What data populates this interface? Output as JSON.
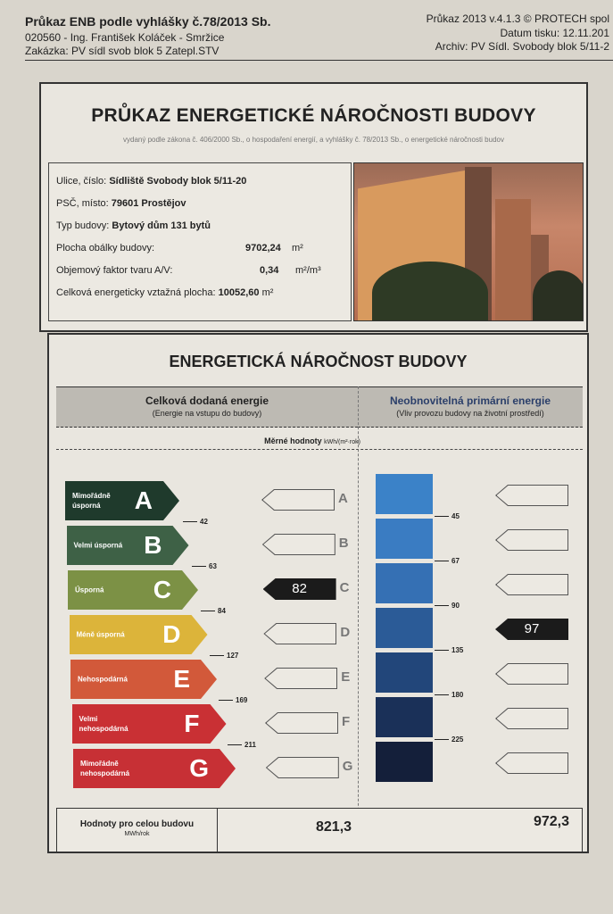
{
  "header": {
    "title": "Průkaz ENB podle vyhlášky č.78/2013 Sb.",
    "author": "020560 - Ing. František Koláček - Smržice",
    "order": "Zakázka: PV sídl svob blok 5 Zatepl.STV",
    "software": "Průkaz 2013 v.4.1.3 © PROTECH spol",
    "print_date": "Datum tisku: 12.11.201",
    "archive": "Archiv: PV Sídl. Svobody blok 5/11-2"
  },
  "card": {
    "title": "PRŮKAZ ENERGETICKÉ NÁROČNOSTI BUDOVY",
    "subtitle": "vydaný podle zákona č. 406/2000 Sb., o hospodaření energií, a vyhlášky č. 78/2013 Sb., o energetické náročnosti budov",
    "info": [
      {
        "label": "Ulice, číslo:",
        "value": "Sídliště Svobody blok 5/11-20",
        "unit": ""
      },
      {
        "label": "PSČ, místo:",
        "value": "79601  Prostějov",
        "unit": ""
      },
      {
        "label": "Typ budovy:",
        "value": "Bytový dům 131 bytů",
        "unit": ""
      },
      {
        "label": "Plocha obálky budovy:",
        "value": "9702,24",
        "unit": "m²"
      },
      {
        "label": "Objemový faktor tvaru A/V:",
        "value": "0,34",
        "unit": "m²/m³"
      },
      {
        "label": "Celková energeticky vztažná plocha:",
        "value": "10052,60",
        "unit": "m²"
      }
    ]
  },
  "rating": {
    "title": "ENERGETICKÁ NÁROČNOST BUDOVY",
    "left": {
      "title": "Celková dodaná energie",
      "subtitle": "(Energie na vstupu do budovy)",
      "value": "82",
      "class": "C"
    },
    "right": {
      "title": "Neobnovitelná primární energie",
      "subtitle": "(Vliv provozu budovy na životní prostředí)",
      "value": "97",
      "class": "D"
    },
    "units_label": "Měrné hodnoty",
    "units": "kWh/(m²·rok)",
    "classes": [
      {
        "letter": "A",
        "label": "Mimořádně úsporná",
        "color": "#1f3a2c"
      },
      {
        "letter": "B",
        "label": "Velmi úsporná",
        "color": "#3e6146"
      },
      {
        "letter": "C",
        "label": "Úsporná",
        "color": "#7c9145"
      },
      {
        "letter": "D",
        "label": "Méně úsporná",
        "color": "#dcb43a"
      },
      {
        "letter": "E",
        "label": "Nehospodárná",
        "color": "#d2593a"
      },
      {
        "letter": "F",
        "label": "Velmi nehospodárná",
        "color": "#c93034"
      },
      {
        "letter": "G",
        "label": "Mimořádně nehospodárná",
        "color": "#c73035"
      }
    ],
    "left_thresholds": [
      "42",
      "63",
      "84",
      "127",
      "169",
      "211"
    ],
    "right_thresholds": [
      "45",
      "67",
      "90",
      "135",
      "180",
      "225"
    ],
    "blue_colors": [
      "#3b82c8",
      "#3a7cc2",
      "#3570b4",
      "#2b5b97",
      "#22467a",
      "#1a3058",
      "#141f3a"
    ],
    "totals": {
      "label": "Hodnoty pro celou budovu",
      "unit": "MWh/rok",
      "left": "821,3",
      "right": "972,3"
    }
  }
}
